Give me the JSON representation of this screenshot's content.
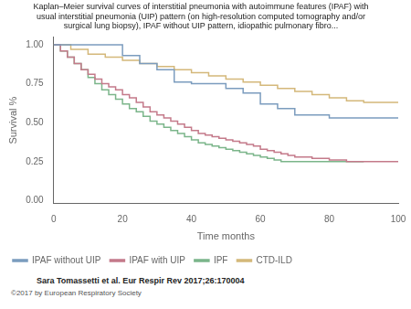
{
  "chart_data": {
    "type": "line",
    "title": "Kaplan–Meier survival curves of interstitial pneumonia with autoimmune features (IPAF) with\nusual interstitial pneumonia (UIP) pattern (on high-resolution computed tomography and/or\nsurgical lung biopsy), IPAF without UIP pattern, idiopathic pulmonary fibro...",
    "xlabel": "Time months",
    "ylabel": "Survival %",
    "annotations": [
      "Sara Tomassetti et al. Eur Respir Rev 2017;26:170004",
      "©2017 by European Respiratory Society"
    ],
    "xlim": [
      0,
      100
    ],
    "xticks": [
      0,
      20,
      40,
      60,
      80,
      100
    ],
    "ylim": [
      -0.02,
      1.05
    ],
    "yticks": [
      {
        "value": 0.0,
        "label": "0.00"
      },
      0.25,
      {
        "value": 0.5,
        "label": "0.50"
      },
      0.75,
      {
        "value": 1.0,
        "label": "1.00"
      }
    ],
    "grid": false,
    "legend": "lower left",
    "series": [
      {
        "name": "IPAF without UIP",
        "color": "#7b9cbe",
        "x": [
          0,
          20,
          20,
          25,
          25,
          30,
          30,
          35,
          35,
          40,
          40,
          50,
          50,
          55,
          55,
          60,
          60,
          65,
          65,
          70,
          70,
          80,
          80,
          100
        ],
        "values": [
          1.0,
          1.0,
          0.93,
          0.93,
          0.88,
          0.88,
          0.84,
          0.84,
          0.76,
          0.76,
          0.75,
          0.75,
          0.72,
          0.72,
          0.69,
          0.69,
          0.62,
          0.62,
          0.59,
          0.59,
          0.55,
          0.55,
          0.53,
          0.53
        ]
      },
      {
        "name": "IPAF with UIP",
        "color": "#c47a8a",
        "x": [
          0,
          2,
          2,
          4,
          4,
          6,
          6,
          8,
          8,
          10,
          10,
          12,
          12,
          14,
          14,
          16,
          16,
          18,
          18,
          20,
          20,
          22,
          22,
          24,
          24,
          26,
          26,
          28,
          28,
          30,
          30,
          32,
          32,
          34,
          34,
          36,
          36,
          38,
          38,
          40,
          40,
          42,
          42,
          44,
          44,
          46,
          46,
          48,
          48,
          50,
          50,
          52,
          52,
          54,
          54,
          56,
          56,
          58,
          58,
          60,
          60,
          62,
          62,
          64,
          64,
          66,
          66,
          68,
          68,
          70,
          70,
          75,
          75,
          80,
          80,
          85,
          85,
          100
        ],
        "values": [
          1.0,
          1.0,
          0.96,
          0.96,
          0.92,
          0.92,
          0.88,
          0.88,
          0.84,
          0.84,
          0.81,
          0.81,
          0.78,
          0.78,
          0.75,
          0.75,
          0.73,
          0.73,
          0.71,
          0.71,
          0.68,
          0.68,
          0.66,
          0.66,
          0.63,
          0.63,
          0.6,
          0.6,
          0.57,
          0.57,
          0.55,
          0.55,
          0.53,
          0.53,
          0.51,
          0.51,
          0.49,
          0.49,
          0.47,
          0.47,
          0.45,
          0.45,
          0.43,
          0.43,
          0.42,
          0.42,
          0.41,
          0.41,
          0.4,
          0.4,
          0.39,
          0.39,
          0.38,
          0.38,
          0.37,
          0.37,
          0.36,
          0.36,
          0.35,
          0.35,
          0.33,
          0.33,
          0.32,
          0.32,
          0.31,
          0.31,
          0.3,
          0.3,
          0.29,
          0.29,
          0.28,
          0.28,
          0.27,
          0.27,
          0.26,
          0.26,
          0.25,
          0.25
        ]
      },
      {
        "name": "IPF",
        "color": "#7bb58a",
        "x": [
          0,
          2,
          2,
          4,
          4,
          6,
          6,
          8,
          8,
          10,
          10,
          12,
          12,
          14,
          14,
          16,
          16,
          18,
          18,
          20,
          20,
          22,
          22,
          24,
          24,
          26,
          26,
          28,
          28,
          30,
          30,
          32,
          32,
          34,
          34,
          36,
          36,
          38,
          38,
          40,
          40,
          42,
          42,
          44,
          44,
          46,
          46,
          48,
          48,
          50,
          50,
          52,
          52,
          54,
          54,
          56,
          56,
          58,
          58,
          60,
          60,
          62,
          62,
          64,
          64,
          66,
          66,
          68,
          68,
          70,
          70,
          75,
          75,
          80,
          80,
          90
        ],
        "values": [
          1.0,
          1.0,
          0.96,
          0.96,
          0.92,
          0.92,
          0.88,
          0.88,
          0.84,
          0.84,
          0.79,
          0.79,
          0.75,
          0.75,
          0.71,
          0.71,
          0.68,
          0.68,
          0.65,
          0.65,
          0.62,
          0.62,
          0.59,
          0.59,
          0.57,
          0.57,
          0.54,
          0.54,
          0.51,
          0.51,
          0.49,
          0.49,
          0.47,
          0.47,
          0.45,
          0.45,
          0.43,
          0.43,
          0.41,
          0.41,
          0.39,
          0.39,
          0.37,
          0.37,
          0.36,
          0.36,
          0.35,
          0.35,
          0.34,
          0.34,
          0.33,
          0.33,
          0.32,
          0.32,
          0.31,
          0.31,
          0.3,
          0.3,
          0.29,
          0.29,
          0.28,
          0.28,
          0.27,
          0.27,
          0.26,
          0.26,
          0.25,
          0.25,
          0.25,
          0.25,
          0.25,
          0.25,
          0.25,
          0.25,
          0.25,
          0.25
        ]
      },
      {
        "name": "CTD-ILD",
        "color": "#d4b87a",
        "x": [
          0,
          5,
          5,
          10,
          10,
          15,
          15,
          20,
          20,
          25,
          25,
          30,
          30,
          35,
          35,
          40,
          40,
          45,
          45,
          50,
          50,
          55,
          55,
          60,
          60,
          65,
          65,
          70,
          70,
          75,
          75,
          80,
          80,
          85,
          85,
          90,
          90,
          95,
          95,
          100
        ],
        "values": [
          1.0,
          1.0,
          0.97,
          0.97,
          0.94,
          0.94,
          0.92,
          0.92,
          0.9,
          0.9,
          0.88,
          0.88,
          0.86,
          0.86,
          0.84,
          0.84,
          0.82,
          0.82,
          0.8,
          0.8,
          0.78,
          0.78,
          0.76,
          0.76,
          0.74,
          0.74,
          0.72,
          0.72,
          0.7,
          0.7,
          0.68,
          0.68,
          0.66,
          0.66,
          0.64,
          0.64,
          0.63,
          0.63,
          0.63,
          0.63
        ]
      }
    ]
  }
}
